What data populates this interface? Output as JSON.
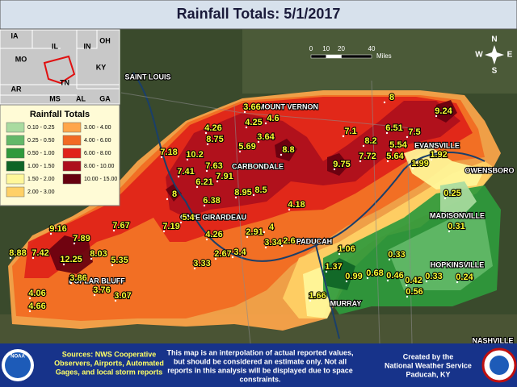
{
  "title": "Rainfall Totals: 5/1/2017",
  "legend": {
    "title": "Rainfall Totals",
    "items": [
      {
        "label": "0.10 - 0.25",
        "color": "#a9dba0"
      },
      {
        "label": "0.25 - 0.50",
        "color": "#63b868"
      },
      {
        "label": "0.50 - 1.00",
        "color": "#2f9a3c"
      },
      {
        "label": "1.00 - 1.50",
        "color": "#0e6426"
      },
      {
        "label": "1.50 - 2.00",
        "color": "#fff79a"
      },
      {
        "label": "2.00 - 3.00",
        "color": "#ffd066"
      },
      {
        "label": "3.00 - 4.00",
        "color": "#ffa64a"
      },
      {
        "label": "4.00 - 6.00",
        "color": "#f26a22"
      },
      {
        "label": "6.00 - 8.00",
        "color": "#e02219"
      },
      {
        "label": "8.00 - 10.00",
        "color": "#ad0f1c"
      },
      {
        "label": "10.00 - 15.00",
        "color": "#66000f"
      }
    ]
  },
  "scale_bar": {
    "ticks": [
      0,
      10,
      20,
      40
    ],
    "unit": "Miles"
  },
  "compass": [
    "N",
    "E",
    "S",
    "W"
  ],
  "inset": {
    "states": [
      "IA",
      "IL",
      "IN",
      "OH",
      "MO",
      "KY",
      "AR",
      "TN",
      "MS",
      "AL",
      "GA"
    ]
  },
  "cities": [
    "SAINT LOUIS",
    "MOUNT VERNON",
    "CARBONDALE",
    "CAPE GIRARDEAU",
    "PADUCAH",
    "POPLAR BLUFF",
    "MURRAY",
    "EVANSVILLE",
    "OWENSBORO",
    "MADISONVILLE",
    "HOPKINSVILLE",
    "NASHVILLE"
  ],
  "rainfall_values": [
    8.88,
    7.42,
    9.16,
    7.89,
    7.67,
    12.25,
    8.03,
    5.35,
    3.86,
    3.76,
    3.07,
    4.06,
    4.66,
    7.18,
    10.2,
    7.41,
    7.63,
    7.91,
    6.21,
    8,
    6.38,
    5.4,
    7.19,
    4.26,
    3.33,
    2.67,
    3.4,
    2.91,
    4,
    3.34,
    2.6,
    4.18,
    8.75,
    4.26,
    5.69,
    3.64,
    4.25,
    4.6,
    3.66,
    8.8,
    8.95,
    8.5,
    9.75,
    7.72,
    5.64,
    7.1,
    8.2,
    6.51,
    7.5,
    5.54,
    8,
    9.24,
    1.92,
    1.99,
    0.25,
    0.31,
    1.06,
    0.33,
    1.37,
    0.99,
    0.68,
    0.46,
    0.42,
    0.33,
    0.24,
    0.56,
    1.66
  ],
  "footer": {
    "sources": [
      "Sources: NWS Cooperative",
      "Observers, Airports, Automated",
      "Gages, and local storm reports"
    ],
    "disclaimer": [
      "This map is an interpolation of actual reported values,",
      "but should be considered an estimate only. Not all",
      "reports in this analysis will be displayed due to space",
      "constraints."
    ],
    "credit": [
      "Created by the",
      "National Weather Service",
      "Paducah, KY"
    ],
    "logo": "NOAA"
  }
}
